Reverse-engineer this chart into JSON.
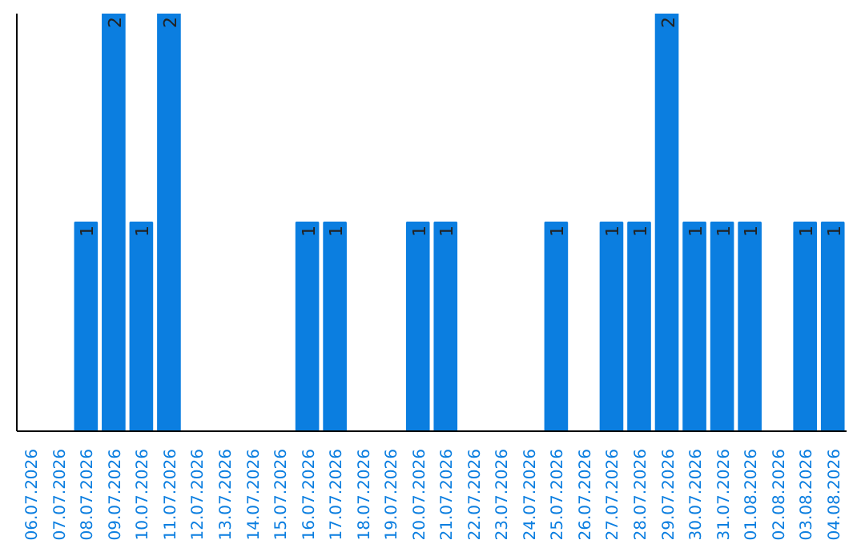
{
  "chart_data": {
    "type": "bar",
    "categories": [
      "06.07.2026",
      "07.07.2026",
      "08.07.2026",
      "09.07.2026",
      "10.07.2026",
      "11.07.2026",
      "12.07.2026",
      "13.07.2026",
      "14.07.2026",
      "15.07.2026",
      "16.07.2026",
      "17.07.2026",
      "18.07.2026",
      "19.07.2026",
      "20.07.2026",
      "21.07.2026",
      "22.07.2026",
      "23.07.2026",
      "24.07.2026",
      "25.07.2026",
      "26.07.2026",
      "27.07.2026",
      "28.07.2026",
      "29.07.2026",
      "30.07.2026",
      "31.07.2026",
      "01.08.2026",
      "02.08.2026",
      "03.08.2026",
      "04.08.2026"
    ],
    "values": [
      0,
      0,
      1,
      2,
      1,
      2,
      0,
      0,
      0,
      0,
      1,
      1,
      0,
      0,
      1,
      1,
      0,
      0,
      0,
      1,
      0,
      1,
      1,
      2,
      1,
      1,
      1,
      0,
      1,
      1
    ],
    "value_labels": [
      null,
      null,
      "1",
      "2",
      "1",
      "2",
      null,
      null,
      null,
      null,
      "1",
      "1",
      null,
      null,
      "1",
      "1",
      null,
      null,
      null,
      "1",
      null,
      "1",
      "1",
      "2",
      "1",
      "1",
      "1",
      null,
      "1",
      "1"
    ],
    "color": "#0b7ee0",
    "ylim": [
      0,
      2
    ],
    "tick_labels": "x"
  }
}
